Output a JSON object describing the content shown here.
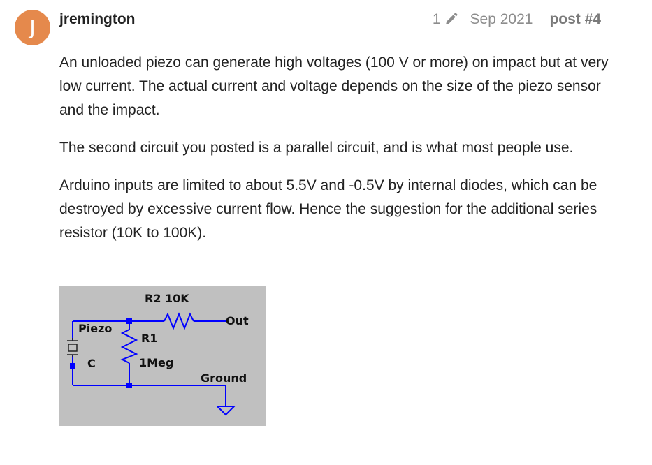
{
  "post": {
    "avatar_letter": "J",
    "avatar_color": "#e5894c",
    "username": "jremington",
    "edit_count": "1",
    "edit_icon": "pencil-icon",
    "date": "Sep 2021",
    "post_number": "post #4"
  },
  "body": {
    "paragraphs": [
      "An unloaded piezo can generate high voltages (100 V or more) on impact but at very low current. The actual current and voltage depends on the size of the piezo sensor and the impact.",
      "The second circuit you posted is a parallel circuit, and is what most people use.",
      "Arduino inputs are limited to about 5.5V and -0.5V by internal diodes, which can be destroyed by excessive current flow. Hence the suggestion for the additional series resistor (10K to 100K)."
    ]
  },
  "schematic": {
    "labels": {
      "r2": "R2 10K",
      "out": "Out",
      "piezo": "Piezo",
      "r1": "R1",
      "c": "C",
      "r1_value": "1Meg",
      "ground": "Ground"
    },
    "wire_color": "#0000ff",
    "background_color": "#c0c0c0"
  }
}
